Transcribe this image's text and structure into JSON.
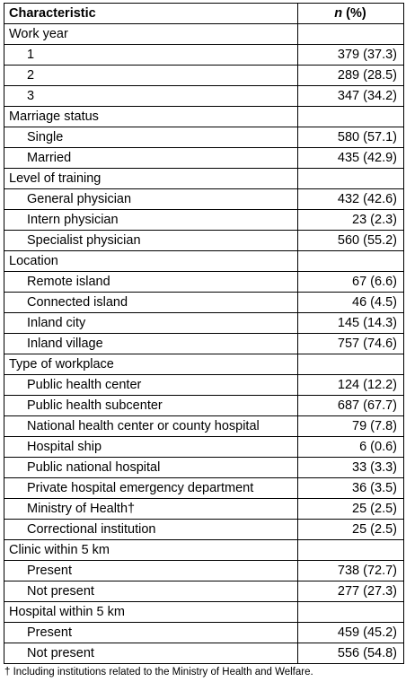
{
  "header": {
    "characteristic": "Characteristic",
    "n_italic": "n",
    "pct": " (%)"
  },
  "groups": [
    {
      "label": "Work year",
      "items": [
        {
          "label": "1",
          "value": "379 (37.3)"
        },
        {
          "label": "2",
          "value": "289 (28.5)"
        },
        {
          "label": "3",
          "value": "347 (34.2)"
        }
      ]
    },
    {
      "label": "Marriage status",
      "items": [
        {
          "label": "Single",
          "value": "580 (57.1)"
        },
        {
          "label": "Married",
          "value": "435 (42.9)"
        }
      ]
    },
    {
      "label": "Level of training",
      "items": [
        {
          "label": "General physician",
          "value": "432 (42.6)"
        },
        {
          "label": "Intern physician",
          "value": "23 (2.3)"
        },
        {
          "label": "Specialist physician",
          "value": "560 (55.2)"
        }
      ]
    },
    {
      "label": "Location",
      "items": [
        {
          "label": "Remote island",
          "value": "67 (6.6)"
        },
        {
          "label": "Connected island",
          "value": "46 (4.5)"
        },
        {
          "label": "Inland city",
          "value": "145 (14.3)"
        },
        {
          "label": "Inland village",
          "value": "757 (74.6)"
        }
      ]
    },
    {
      "label": "Type of workplace",
      "items": [
        {
          "label": "Public health center",
          "value": "124 (12.2)"
        },
        {
          "label": "Public health subcenter",
          "value": "687 (67.7)"
        },
        {
          "label": "National health center or county hospital",
          "value": "79 (7.8)"
        },
        {
          "label": "Hospital ship",
          "value": "6 (0.6)"
        },
        {
          "label": "Public national hospital",
          "value": "33 (3.3)"
        },
        {
          "label": "Private hospital emergency department",
          "value": "36 (3.5)"
        },
        {
          "label": "Ministry of Health†",
          "value": "25 (2.5)"
        },
        {
          "label": "Correctional institution",
          "value": "25 (2.5)"
        }
      ]
    },
    {
      "label": "Clinic within 5 km",
      "items": [
        {
          "label": "Present",
          "value": "738 (72.7)"
        },
        {
          "label": "Not present",
          "value": "277 (27.3)"
        }
      ]
    },
    {
      "label": "Hospital within 5 km",
      "items": [
        {
          "label": "Present",
          "value": "459 (45.2)"
        },
        {
          "label": "Not present",
          "value": "556 (54.8)"
        }
      ]
    }
  ],
  "footnote": "† Including institutions related to the Ministry of Health and Welfare."
}
